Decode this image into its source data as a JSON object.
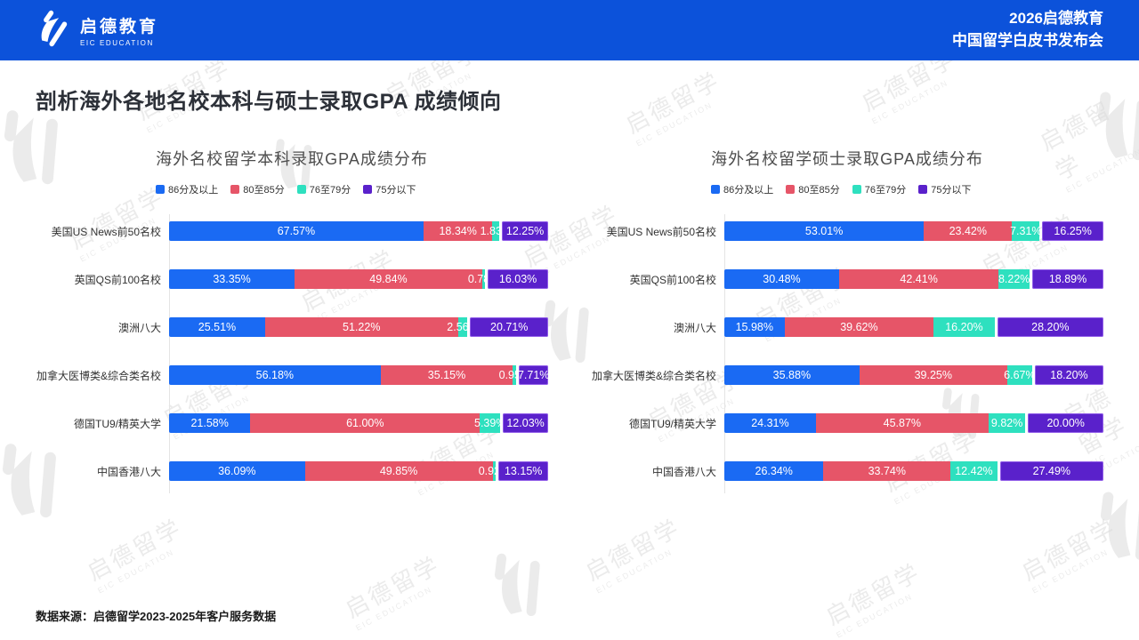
{
  "header": {
    "logo_cn": "启德教育",
    "logo_en": "EIC EDUCATION",
    "right_line1": "2026启德教育",
    "right_line2": "中国留学白皮书发布会"
  },
  "page_title": "剖析海外各地名校本科与硕士录取GPA 成绩倾向",
  "footer": {
    "source": "数据来源：启德留学2023-2025年客户服务数据"
  },
  "watermark": {
    "cn": "启德留学",
    "en": "EIC EDUCATION"
  },
  "colors": {
    "header_bg": "#0c52da",
    "series_blue": "#1a6af3",
    "series_red": "#e65568",
    "series_teal": "#2ee0bf",
    "series_purple": "#5a21cb"
  },
  "chart_data": [
    {
      "type": "bar",
      "orientation": "horizontal-stacked",
      "title": "海外名校留学本科录取GPA成绩分布",
      "legend": [
        "86分及以上",
        "80至85分",
        "76至79分",
        "75分以下"
      ],
      "legend_position": "top-left",
      "series_colors": [
        "#1a6af3",
        "#e65568",
        "#2ee0bf",
        "#5a21cb"
      ],
      "categories": [
        "美国US News前50名校",
        "英国QS前100名校",
        "澳洲八大",
        "加拿大医博类&综合类名校",
        "德国TU9/精英大学",
        "中国香港八大"
      ],
      "series": [
        {
          "name": "86分及以上",
          "values": [
            67.57,
            33.35,
            25.51,
            56.18,
            21.58,
            36.09
          ]
        },
        {
          "name": "80至85分",
          "values": [
            18.34,
            49.84,
            51.22,
            35.15,
            61.0,
            49.85
          ]
        },
        {
          "name": "76至79分",
          "values": [
            1.83,
            0.78,
            2.56,
            0.95,
            5.39,
            0.92
          ]
        },
        {
          "name": "75分以下",
          "values": [
            12.25,
            16.03,
            20.71,
            7.71,
            12.03,
            13.15
          ]
        }
      ],
      "xlim": [
        0,
        100
      ],
      "value_suffix": "%",
      "grid": false
    },
    {
      "type": "bar",
      "orientation": "horizontal-stacked",
      "title": "海外名校留学硕士录取GPA成绩分布",
      "legend": [
        "86分及以上",
        "80至85分",
        "76至79分",
        "75分以下"
      ],
      "legend_position": "top-left",
      "series_colors": [
        "#1a6af3",
        "#e65568",
        "#2ee0bf",
        "#5a21cb"
      ],
      "categories": [
        "美国US News前50名校",
        "英国QS前100名校",
        "澳洲八大",
        "加拿大医博类&综合类名校",
        "德国TU9/精英大学",
        "中国香港八大"
      ],
      "series": [
        {
          "name": "86分及以上",
          "values": [
            53.01,
            30.48,
            15.98,
            35.88,
            24.31,
            26.34
          ]
        },
        {
          "name": "80至85分",
          "values": [
            23.42,
            42.41,
            39.62,
            39.25,
            45.87,
            33.74
          ]
        },
        {
          "name": "76至79分",
          "values": [
            7.31,
            8.22,
            16.2,
            6.67,
            9.82,
            12.42
          ]
        },
        {
          "name": "75分以下",
          "values": [
            16.25,
            18.89,
            28.2,
            18.2,
            20.0,
            27.49
          ]
        }
      ],
      "xlim": [
        0,
        100
      ],
      "value_suffix": "%",
      "grid": false
    }
  ]
}
